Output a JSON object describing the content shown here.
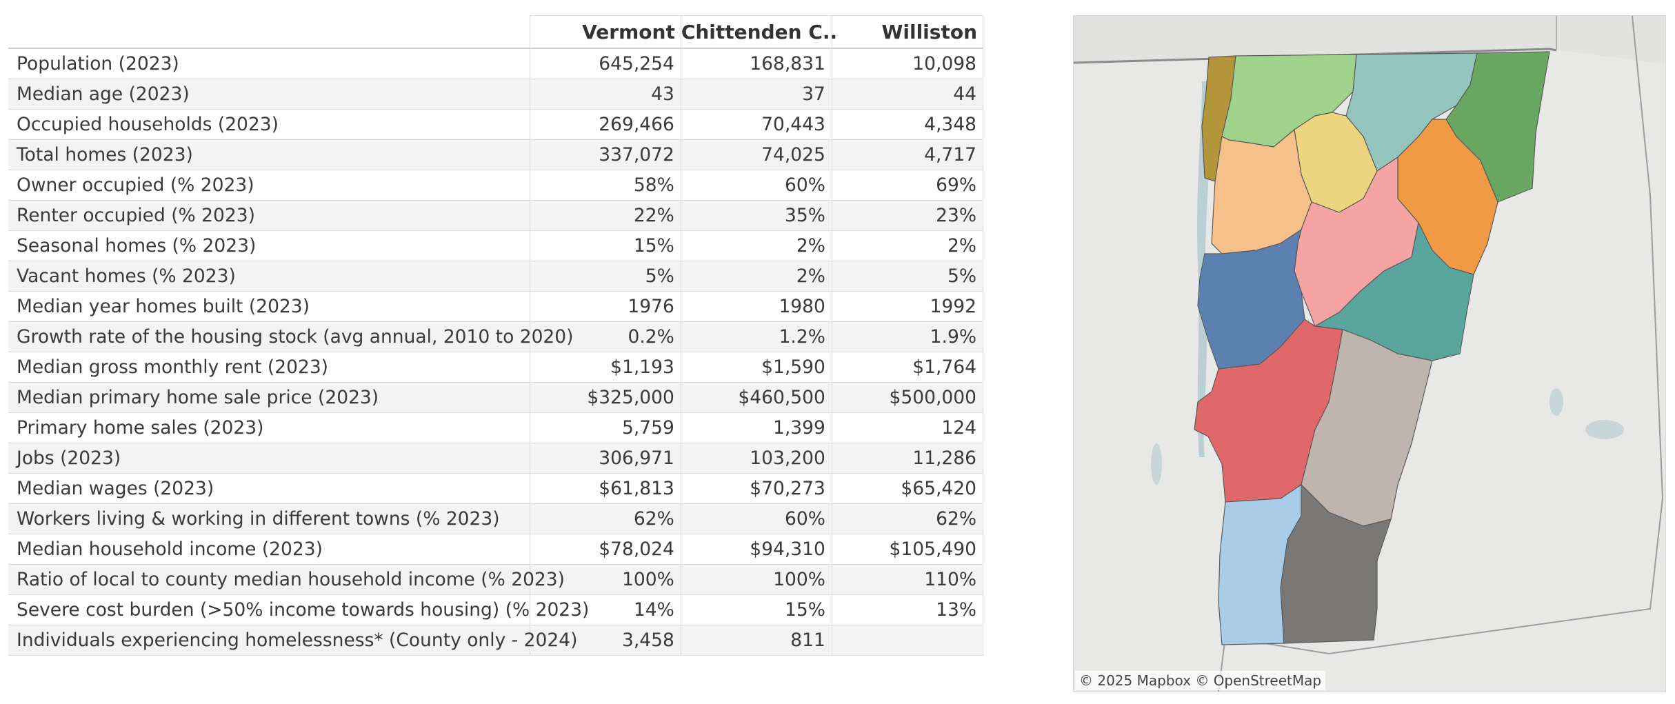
{
  "table": {
    "columns": [
      "Vermont",
      "Chittenden C..",
      "Williston"
    ],
    "rows": [
      {
        "label": "Population (2023)",
        "values": [
          "645,254",
          "168,831",
          "10,098"
        ]
      },
      {
        "label": "Median age (2023)",
        "values": [
          "43",
          "37",
          "44"
        ]
      },
      {
        "label": "Occupied households (2023)",
        "values": [
          "269,466",
          "70,443",
          "4,348"
        ]
      },
      {
        "label": "Total homes (2023)",
        "values": [
          "337,072",
          "74,025",
          "4,717"
        ]
      },
      {
        "label": "Owner occupied (% 2023)",
        "values": [
          "58%",
          "60%",
          "69%"
        ]
      },
      {
        "label": "Renter occupied (% 2023)",
        "values": [
          "22%",
          "35%",
          "23%"
        ]
      },
      {
        "label": "Seasonal homes (% 2023)",
        "values": [
          "15%",
          "2%",
          "2%"
        ]
      },
      {
        "label": "Vacant homes (% 2023)",
        "values": [
          "5%",
          "2%",
          "5%"
        ]
      },
      {
        "label": "Median year homes built (2023)",
        "values": [
          "1976",
          "1980",
          "1992"
        ]
      },
      {
        "label": "Growth rate of the housing stock (avg annual, 2010 to 2020)",
        "values": [
          "0.2%",
          "1.2%",
          "1.9%"
        ]
      },
      {
        "label": "Median gross monthly rent (2023)",
        "values": [
          "$1,193",
          "$1,590",
          "$1,764"
        ]
      },
      {
        "label": "Median primary home sale price (2023)",
        "values": [
          "$325,000",
          "$460,500",
          "$500,000"
        ]
      },
      {
        "label": "Primary home sales (2023)",
        "values": [
          "5,759",
          "1,399",
          "124"
        ]
      },
      {
        "label": "Jobs (2023)",
        "values": [
          "306,971",
          "103,200",
          "11,286"
        ]
      },
      {
        "label": "Median wages (2023)",
        "values": [
          "$61,813",
          "$70,273",
          "$65,420"
        ]
      },
      {
        "label": "Workers living & working in different towns (% 2023)",
        "values": [
          "62%",
          "60%",
          "62%"
        ]
      },
      {
        "label": "Median household income (2023)",
        "values": [
          "$78,024",
          "$94,310",
          "$105,490"
        ]
      },
      {
        "label": "Ratio of local to county median household income (% 2023)",
        "values": [
          "100%",
          "100%",
          "110%"
        ]
      },
      {
        "label": "Severe cost burden (>50% income towards housing) (% 2023)",
        "values": [
          "14%",
          "15%",
          "13%"
        ]
      },
      {
        "label": "Individuals experiencing homelessness* (County only - 2024)",
        "values": [
          "3,458",
          "811",
          ""
        ]
      }
    ]
  },
  "map": {
    "attribution": "© 2025 Mapbox  © OpenStreetMap",
    "regions": [
      {
        "name": "grand-isle-region",
        "color": "#b3953a"
      },
      {
        "name": "franklin-region",
        "color": "#9fd38b"
      },
      {
        "name": "orleans-region",
        "color": "#93c4be"
      },
      {
        "name": "essex-region",
        "color": "#69a862"
      },
      {
        "name": "lamoille-region",
        "color": "#ecd57e"
      },
      {
        "name": "chittenden-region",
        "color": "#f5c08a"
      },
      {
        "name": "caledonia-region",
        "color": "#f19a45"
      },
      {
        "name": "washington-region",
        "color": "#f6a3a4"
      },
      {
        "name": "addison-region",
        "color": "#5c80b0"
      },
      {
        "name": "orange-region",
        "color": "#5aa69e"
      },
      {
        "name": "rutland-region",
        "color": "#e0676a"
      },
      {
        "name": "windsor-region",
        "color": "#bfb4ae"
      },
      {
        "name": "bennington-region",
        "color": "#a9cde9"
      },
      {
        "name": "windham-region",
        "color": "#7a7777"
      }
    ]
  }
}
